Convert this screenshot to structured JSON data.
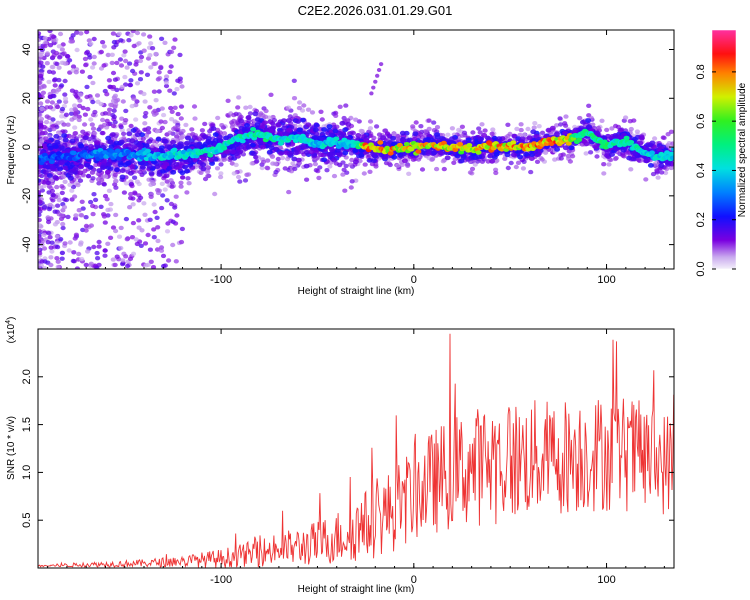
{
  "title": "C2E2.2026.031.01.29.G01",
  "chart_data": [
    {
      "type": "heatmap",
      "xlabel": "Height of straight line (km)",
      "ylabel": "Frequency (Hz)",
      "xlim": [
        -195,
        135
      ],
      "ylim": [
        -50,
        48
      ],
      "xticks": [
        -100,
        0,
        100
      ],
      "xtick_labels": [
        "-100",
        "0",
        "100"
      ],
      "yticks": [
        -40,
        -20,
        0,
        20,
        40
      ],
      "ytick_labels": [
        "-40",
        "-20",
        "0",
        "20",
        "40"
      ],
      "colorbar": {
        "label": "Normalized spectral amplitude",
        "range": [
          0.0,
          0.97
        ],
        "ticks": [
          0.0,
          0.2,
          0.4,
          0.6,
          0.8
        ],
        "tick_labels": [
          "0.0",
          "0.2",
          "0.4",
          "0.6",
          "0.8"
        ]
      },
      "ridge": {
        "x": [
          -195,
          -180,
          -165,
          -150,
          -140,
          -130,
          -120,
          -110,
          -100,
          -90,
          -80,
          -70,
          -60,
          -50,
          -40,
          -30,
          -25,
          -20,
          -10,
          0,
          10,
          20,
          30,
          40,
          50,
          60,
          70,
          80,
          85,
          90,
          95,
          100,
          105,
          110,
          115,
          120,
          125,
          130,
          135
        ],
        "freq": [
          -5,
          -4,
          -3,
          -3,
          -3,
          -4,
          -3,
          -2,
          0,
          4,
          5,
          3,
          4,
          1,
          2,
          1,
          0,
          -1,
          -1,
          0,
          1,
          0,
          -1,
          0,
          0,
          0,
          2,
          3,
          4,
          6,
          3,
          1,
          2,
          2,
          0,
          -2,
          -4,
          -4,
          -3
        ],
        "amplitude": [
          0.3,
          0.3,
          0.35,
          0.35,
          0.4,
          0.45,
          0.45,
          0.5,
          0.5,
          0.5,
          0.55,
          0.5,
          0.45,
          0.45,
          0.45,
          0.45,
          0.9,
          0.85,
          0.85,
          0.8,
          0.85,
          0.8,
          0.8,
          0.85,
          0.85,
          0.85,
          0.9,
          0.8,
          0.6,
          0.55,
          0.55,
          0.6,
          0.5,
          0.5,
          0.5,
          0.45,
          0.45,
          0.45,
          0.45
        ]
      },
      "spike": {
        "x": [
          -22,
          -17
        ],
        "freq": [
          22,
          34
        ]
      }
    },
    {
      "type": "line",
      "xlabel": "Height of straight line (km)",
      "ylabel": "SNR (10 * v/v)",
      "y_scale_label": "(x10",
      "y_scale_exponent": "4",
      "xlim": [
        -195,
        135
      ],
      "ylim": [
        0,
        2.5
      ],
      "xticks": [
        -100,
        0,
        100
      ],
      "xtick_labels": [
        "-100",
        "0",
        "100"
      ],
      "yticks": [
        0.5,
        1.0,
        1.5,
        2.0
      ],
      "ytick_labels": [
        "0.5",
        "1.0",
        "1.5",
        "2.0"
      ],
      "series": [
        {
          "name": "SNR",
          "color": "#ee3333",
          "x": [
            -195,
            -180,
            -160,
            -140,
            -120,
            -100,
            -90,
            -80,
            -70,
            -60,
            -50,
            -40,
            -30,
            -20,
            -10,
            0,
            10,
            20,
            30,
            40,
            50,
            60,
            70,
            80,
            90,
            100,
            110,
            120,
            130,
            135
          ],
          "baseline": [
            0.02,
            0.03,
            0.04,
            0.05,
            0.07,
            0.1,
            0.13,
            0.16,
            0.2,
            0.22,
            0.26,
            0.32,
            0.4,
            0.5,
            0.62,
            0.78,
            0.9,
            1.0,
            1.05,
            1.1,
            1.12,
            1.15,
            1.15,
            1.18,
            1.2,
            1.2,
            1.2,
            1.15,
            1.1,
            1.1
          ],
          "spread": [
            0.01,
            0.02,
            0.03,
            0.04,
            0.06,
            0.1,
            0.12,
            0.15,
            0.18,
            0.2,
            0.24,
            0.28,
            0.34,
            0.4,
            0.45,
            0.5,
            0.55,
            0.6,
            0.62,
            0.65,
            0.65,
            0.62,
            0.62,
            0.62,
            0.62,
            0.62,
            0.62,
            0.58,
            0.55,
            0.55
          ],
          "peak_max": 2.45
        }
      ]
    }
  ]
}
